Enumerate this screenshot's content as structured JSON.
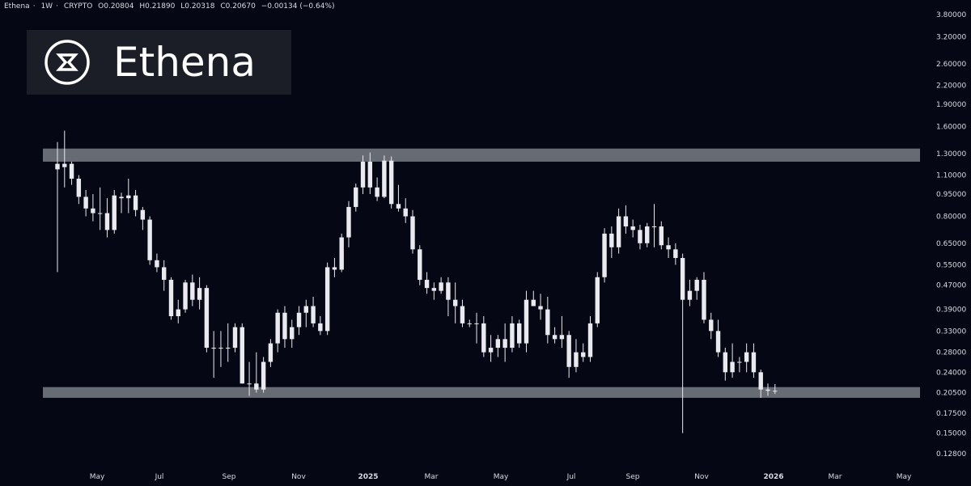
{
  "header": {
    "symbol": "Ethena",
    "interval": "1W",
    "exchange": "CRYPTO",
    "open": "O0.20804",
    "high": "H0.21890",
    "low": "L0.20318",
    "close": "C0.20670",
    "change": "−0.00134 (−0.64%)"
  },
  "logo": {
    "icon": "ethena-logo-icon",
    "text": "Ethena"
  },
  "colors": {
    "background": "#050814",
    "candle": "#e9e9ee",
    "zone": "#8e919a",
    "text": "#d8dbe3",
    "logo_box": "#1b1d27"
  },
  "chart_data": {
    "type": "candlestick",
    "scale": "log",
    "y_ticks": [
      "3.80000",
      "3.20000",
      "2.60000",
      "2.20000",
      "1.90000",
      "1.60000",
      "1.30000",
      "1.10000",
      "0.95000",
      "0.80000",
      "0.65000",
      "0.55000",
      "0.47000",
      "0.39000",
      "0.33000",
      "0.28000",
      "0.24000",
      "0.20500",
      "0.17500",
      "0.15000",
      "0.12800"
    ],
    "x_ticks": [
      "May",
      "Jul",
      "Sep",
      "Nov",
      "2025",
      "Mar",
      "May",
      "Jul",
      "Sep",
      "Nov",
      "2026",
      "Mar",
      "May"
    ],
    "zones": [
      {
        "low": 1.22,
        "high": 1.35
      },
      {
        "low": 0.197,
        "high": 0.214
      }
    ],
    "candles": [
      [
        1.15,
        1.42,
        0.52,
        1.2
      ],
      [
        1.2,
        1.55,
        1.0,
        1.17
      ],
      [
        1.2,
        1.22,
        1.02,
        1.07
      ],
      [
        1.07,
        1.1,
        0.88,
        0.93
      ],
      [
        0.93,
        0.98,
        0.8,
        0.85
      ],
      [
        0.85,
        0.95,
        0.77,
        0.82
      ],
      [
        0.82,
        1.0,
        0.72,
        0.82
      ],
      [
        0.82,
        0.92,
        0.68,
        0.72
      ],
      [
        0.72,
        0.98,
        0.7,
        0.94
      ],
      [
        0.93,
        0.96,
        0.82,
        0.92
      ],
      [
        0.92,
        1.07,
        0.82,
        0.94
      ],
      [
        0.94,
        0.98,
        0.8,
        0.84
      ],
      [
        0.84,
        0.86,
        0.72,
        0.78
      ],
      [
        0.78,
        0.8,
        0.55,
        0.57
      ],
      [
        0.57,
        0.6,
        0.52,
        0.54
      ],
      [
        0.54,
        0.57,
        0.45,
        0.49
      ],
      [
        0.49,
        0.5,
        0.36,
        0.37
      ],
      [
        0.37,
        0.42,
        0.35,
        0.39
      ],
      [
        0.39,
        0.49,
        0.38,
        0.48
      ],
      [
        0.48,
        0.51,
        0.4,
        0.42
      ],
      [
        0.42,
        0.5,
        0.39,
        0.46
      ],
      [
        0.46,
        0.47,
        0.28,
        0.29
      ],
      [
        0.29,
        0.33,
        0.23,
        0.29
      ],
      [
        0.29,
        0.33,
        0.25,
        0.29
      ],
      [
        0.29,
        0.35,
        0.26,
        0.29
      ],
      [
        0.29,
        0.35,
        0.28,
        0.34
      ],
      [
        0.34,
        0.35,
        0.22,
        0.22
      ],
      [
        0.22,
        0.26,
        0.2,
        0.22
      ],
      [
        0.22,
        0.28,
        0.205,
        0.21
      ],
      [
        0.21,
        0.27,
        0.205,
        0.26
      ],
      [
        0.26,
        0.31,
        0.25,
        0.3
      ],
      [
        0.3,
        0.39,
        0.28,
        0.38
      ],
      [
        0.38,
        0.4,
        0.29,
        0.31
      ],
      [
        0.31,
        0.36,
        0.29,
        0.34
      ],
      [
        0.34,
        0.4,
        0.32,
        0.38
      ],
      [
        0.38,
        0.42,
        0.34,
        0.4
      ],
      [
        0.4,
        0.43,
        0.34,
        0.35
      ],
      [
        0.35,
        0.37,
        0.32,
        0.33
      ],
      [
        0.33,
        0.56,
        0.32,
        0.54
      ],
      [
        0.54,
        0.58,
        0.5,
        0.53
      ],
      [
        0.53,
        0.7,
        0.52,
        0.68
      ],
      [
        0.68,
        0.9,
        0.63,
        0.86
      ],
      [
        0.86,
        1.03,
        0.83,
        1.0
      ],
      [
        1.0,
        1.28,
        0.95,
        1.22
      ],
      [
        1.22,
        1.31,
        0.95,
        1.0
      ],
      [
        1.0,
        1.08,
        0.9,
        0.93
      ],
      [
        0.93,
        1.28,
        0.92,
        1.23
      ],
      [
        1.23,
        1.27,
        0.85,
        0.88
      ],
      [
        0.88,
        1.02,
        0.83,
        0.85
      ],
      [
        0.85,
        0.92,
        0.76,
        0.8
      ],
      [
        0.8,
        0.84,
        0.6,
        0.62
      ],
      [
        0.62,
        0.64,
        0.47,
        0.49
      ],
      [
        0.49,
        0.52,
        0.44,
        0.46
      ],
      [
        0.46,
        0.48,
        0.42,
        0.45
      ],
      [
        0.45,
        0.5,
        0.44,
        0.48
      ],
      [
        0.48,
        0.5,
        0.37,
        0.42
      ],
      [
        0.42,
        0.48,
        0.35,
        0.4
      ],
      [
        0.4,
        0.42,
        0.34,
        0.35
      ],
      [
        0.35,
        0.36,
        0.34,
        0.35
      ],
      [
        0.35,
        0.38,
        0.3,
        0.35
      ],
      [
        0.35,
        0.37,
        0.27,
        0.28
      ],
      [
        0.28,
        0.32,
        0.26,
        0.29
      ],
      [
        0.29,
        0.32,
        0.27,
        0.31
      ],
      [
        0.31,
        0.35,
        0.26,
        0.29
      ],
      [
        0.29,
        0.37,
        0.28,
        0.35
      ],
      [
        0.35,
        0.36,
        0.29,
        0.3
      ],
      [
        0.3,
        0.45,
        0.28,
        0.42
      ],
      [
        0.42,
        0.45,
        0.4,
        0.4
      ],
      [
        0.4,
        0.44,
        0.36,
        0.39
      ],
      [
        0.39,
        0.43,
        0.3,
        0.32
      ],
      [
        0.32,
        0.34,
        0.3,
        0.31
      ],
      [
        0.31,
        0.37,
        0.29,
        0.32
      ],
      [
        0.32,
        0.33,
        0.23,
        0.25
      ],
      [
        0.25,
        0.31,
        0.24,
        0.28
      ],
      [
        0.28,
        0.3,
        0.26,
        0.27
      ],
      [
        0.27,
        0.37,
        0.26,
        0.35
      ],
      [
        0.35,
        0.52,
        0.34,
        0.5
      ],
      [
        0.5,
        0.73,
        0.48,
        0.7
      ],
      [
        0.7,
        0.74,
        0.58,
        0.63
      ],
      [
        0.63,
        0.85,
        0.6,
        0.8
      ],
      [
        0.8,
        0.87,
        0.7,
        0.74
      ],
      [
        0.74,
        0.78,
        0.68,
        0.72
      ],
      [
        0.72,
        0.75,
        0.62,
        0.65
      ],
      [
        0.65,
        0.76,
        0.63,
        0.74
      ],
      [
        0.74,
        0.88,
        0.63,
        0.74
      ],
      [
        0.74,
        0.77,
        0.62,
        0.64
      ],
      [
        0.64,
        0.68,
        0.58,
        0.62
      ],
      [
        0.62,
        0.65,
        0.55,
        0.58
      ],
      [
        0.58,
        0.6,
        0.15,
        0.42
      ],
      [
        0.42,
        0.49,
        0.4,
        0.45
      ],
      [
        0.45,
        0.5,
        0.42,
        0.49
      ],
      [
        0.49,
        0.52,
        0.35,
        0.36
      ],
      [
        0.36,
        0.38,
        0.31,
        0.33
      ],
      [
        0.33,
        0.36,
        0.27,
        0.28
      ],
      [
        0.28,
        0.29,
        0.225,
        0.24
      ],
      [
        0.24,
        0.3,
        0.23,
        0.26
      ],
      [
        0.26,
        0.27,
        0.24,
        0.26
      ],
      [
        0.26,
        0.3,
        0.24,
        0.28
      ],
      [
        0.28,
        0.3,
        0.23,
        0.24
      ],
      [
        0.24,
        0.245,
        0.197,
        0.21
      ],
      [
        0.21,
        0.22,
        0.2,
        0.208
      ],
      [
        0.208,
        0.219,
        0.203,
        0.2067
      ]
    ]
  }
}
